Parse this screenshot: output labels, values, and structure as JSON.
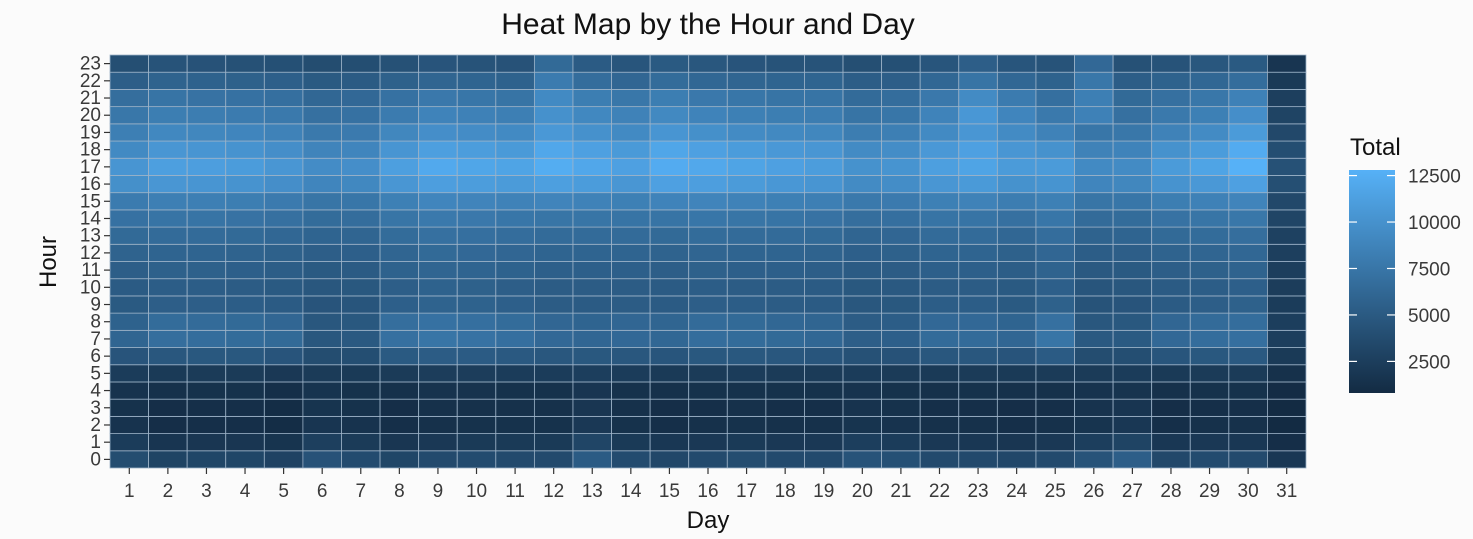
{
  "chart_data": {
    "type": "heatmap",
    "title": "Heat Map by the Hour and Day",
    "xlabel": "Day",
    "ylabel": "Hour",
    "x_categories": [
      "1",
      "2",
      "3",
      "4",
      "5",
      "6",
      "7",
      "8",
      "9",
      "10",
      "11",
      "12",
      "13",
      "14",
      "15",
      "16",
      "17",
      "18",
      "19",
      "20",
      "21",
      "22",
      "23",
      "24",
      "25",
      "26",
      "27",
      "28",
      "29",
      "30",
      "31"
    ],
    "y_categories": [
      "0",
      "1",
      "2",
      "3",
      "4",
      "5",
      "6",
      "7",
      "8",
      "9",
      "10",
      "11",
      "12",
      "13",
      "14",
      "15",
      "16",
      "17",
      "18",
      "19",
      "20",
      "21",
      "22",
      "23"
    ],
    "values": [
      [
        3800,
        3000,
        3200,
        3200,
        2900,
        4300,
        3700,
        3200,
        3600,
        3700,
        3600,
        3600,
        5100,
        3700,
        3300,
        3600,
        3800,
        3600,
        3600,
        4400,
        4100,
        3600,
        3500,
        3300,
        3600,
        4400,
        5400,
        3400,
        3700,
        3600,
        1900
      ],
      [
        2300,
        1700,
        1800,
        1800,
        1600,
        2600,
        2200,
        1800,
        2000,
        2100,
        2100,
        2100,
        3100,
        2100,
        1900,
        2000,
        2100,
        2000,
        2000,
        2500,
        2300,
        2000,
        1900,
        1800,
        2000,
        2500,
        3000,
        1900,
        2000,
        1900,
        1100
      ],
      [
        1500,
        1100,
        1200,
        1200,
        1000,
        1700,
        1500,
        1200,
        1300,
        1400,
        1400,
        1400,
        2000,
        1400,
        1200,
        1300,
        1400,
        1300,
        1300,
        1600,
        1500,
        1300,
        1300,
        1200,
        1300,
        1600,
        1900,
        1200,
        1300,
        1300,
        800
      ],
      [
        1400,
        1100,
        1200,
        1200,
        1000,
        1600,
        1400,
        1100,
        1300,
        1300,
        1300,
        1300,
        1800,
        1300,
        1100,
        1200,
        1300,
        1200,
        1200,
        1500,
        1400,
        1200,
        1200,
        1100,
        1200,
        1500,
        1700,
        1100,
        1200,
        1200,
        800
      ],
      [
        1500,
        1300,
        1400,
        1400,
        1200,
        1600,
        1400,
        1300,
        1500,
        1500,
        1400,
        1400,
        1700,
        1400,
        1300,
        1400,
        1400,
        1400,
        1400,
        1500,
        1400,
        1300,
        1400,
        1300,
        1300,
        1500,
        1600,
        1300,
        1400,
        1400,
        900
      ],
      [
        2300,
        2100,
        2200,
        2200,
        2000,
        2200,
        2100,
        2200,
        2400,
        2400,
        2300,
        2300,
        2500,
        2300,
        2100,
        2200,
        2300,
        2200,
        2200,
        2300,
        2200,
        2100,
        2200,
        2100,
        2200,
        2200,
        2300,
        2100,
        2200,
        2200,
        1300
      ],
      [
        4500,
        4700,
        4800,
        4800,
        4500,
        3800,
        3900,
        5000,
        5200,
        5100,
        4900,
        4700,
        4800,
        4700,
        4600,
        4800,
        4800,
        4700,
        4600,
        4200,
        4300,
        4700,
        4700,
        4500,
        5100,
        3800,
        3900,
        4600,
        4800,
        4900,
        2100
      ],
      [
        6000,
        6800,
        6700,
        6600,
        6400,
        4700,
        4900,
        7000,
        7400,
        7200,
        6900,
        6300,
        6100,
        6300,
        6200,
        6700,
        6600,
        6400,
        6200,
        5400,
        5500,
        6500,
        6500,
        6100,
        7400,
        4900,
        5000,
        6300,
        6700,
        6900,
        2500
      ],
      [
        5700,
        6600,
        6500,
        6400,
        6100,
        4700,
        4800,
        6800,
        7100,
        6900,
        6600,
        6100,
        5900,
        6100,
        6000,
        6500,
        6400,
        6200,
        6000,
        5200,
        5300,
        6300,
        6300,
        5900,
        7000,
        4700,
        4800,
        6100,
        6500,
        6700,
        2500
      ],
      [
        5000,
        5400,
        5400,
        5300,
        5100,
        4500,
        4600,
        5500,
        5800,
        5700,
        5500,
        5200,
        5100,
        5200,
        5100,
        5400,
        5300,
        5200,
        5100,
        4700,
        4800,
        5300,
        5300,
        5000,
        5600,
        4400,
        4500,
        5100,
        5400,
        5600,
        2300
      ],
      [
        5100,
        5300,
        5300,
        5200,
        5000,
        4700,
        4800,
        5400,
        5700,
        5600,
        5400,
        5200,
        5200,
        5200,
        5100,
        5300,
        5200,
        5200,
        5100,
        4800,
        4900,
        5200,
        5200,
        5000,
        5500,
        4600,
        4700,
        5100,
        5300,
        5500,
        2400
      ],
      [
        5400,
        5600,
        5600,
        5500,
        5300,
        5000,
        5100,
        5700,
        6000,
        5900,
        5700,
        5500,
        5500,
        5500,
        5400,
        5600,
        5500,
        5500,
        5400,
        5100,
        5200,
        5500,
        5500,
        5300,
        5800,
        4900,
        5000,
        5400,
        5600,
        5800,
        2500
      ],
      [
        5800,
        5900,
        5900,
        5800,
        5600,
        5400,
        5500,
        6000,
        6400,
        6300,
        6100,
        5900,
        5900,
        5900,
        5800,
        6000,
        5900,
        5900,
        5800,
        5500,
        5600,
        5900,
        5900,
        5600,
        6100,
        5300,
        5400,
        5800,
        6000,
        6200,
        2600
      ],
      [
        6400,
        6500,
        6500,
        6400,
        6200,
        5900,
        6000,
        6600,
        7000,
        6900,
        6700,
        6500,
        6500,
        6500,
        6400,
        6600,
        6500,
        6500,
        6400,
        6000,
        6100,
        6500,
        6500,
        6200,
        6700,
        5800,
        5900,
        6400,
        6600,
        6800,
        2800
      ],
      [
        7100,
        7300,
        7300,
        7200,
        7000,
        6600,
        6700,
        7400,
        7800,
        7700,
        7500,
        7400,
        7400,
        7300,
        7300,
        7500,
        7400,
        7300,
        7200,
        6800,
        6900,
        7300,
        7300,
        7000,
        7500,
        6500,
        6600,
        7200,
        7400,
        7600,
        3100
      ],
      [
        8000,
        8300,
        8300,
        8200,
        7900,
        7400,
        7500,
        8400,
        8900,
        8800,
        8600,
        8800,
        8600,
        8400,
        8700,
        8800,
        8600,
        8400,
        8300,
        7800,
        7900,
        8400,
        8600,
        8100,
        8400,
        7400,
        7500,
        8200,
        8500,
        8800,
        3400
      ],
      [
        9800,
        10400,
        10300,
        10100,
        9700,
        8900,
        9100,
        10400,
        11100,
        11000,
        10800,
        11200,
        10900,
        10400,
        11300,
        11100,
        10800,
        10500,
        10300,
        9400,
        9600,
        10400,
        10700,
        10000,
        10200,
        8900,
        9000,
        10100,
        10600,
        11300,
        4000
      ],
      [
        10300,
        11200,
        11100,
        10900,
        10400,
        9500,
        9700,
        11200,
        12100,
        11800,
        11600,
        12400,
        11900,
        11300,
        12300,
        12000,
        11600,
        11300,
        11000,
        10000,
        10200,
        11200,
        11600,
        10800,
        10800,
        9300,
        9400,
        10800,
        11600,
        12800,
        4200
      ],
      [
        9300,
        10400,
        10300,
        10100,
        9700,
        8800,
        8900,
        10300,
        11200,
        11000,
        10700,
        11900,
        11300,
        10700,
        11800,
        11300,
        10900,
        10600,
        10400,
        9400,
        9600,
        10600,
        11300,
        10400,
        10000,
        8600,
        8700,
        10000,
        10900,
        12300,
        3900
      ],
      [
        8300,
        9100,
        9000,
        8900,
        8600,
        7800,
        7900,
        9000,
        9700,
        9500,
        9300,
        10600,
        9900,
        9300,
        10300,
        9800,
        9400,
        9200,
        9000,
        8100,
        8300,
        9300,
        10400,
        9400,
        8600,
        7500,
        7600,
        8600,
        9400,
        10800,
        3400
      ],
      [
        7600,
        8200,
        8100,
        8000,
        7800,
        7000,
        7100,
        8000,
        8700,
        8500,
        8300,
        9900,
        9100,
        8600,
        9200,
        8700,
        8400,
        8200,
        8100,
        7300,
        7500,
        8700,
        10500,
        8900,
        7800,
        8500,
        7000,
        7800,
        8400,
        9700,
        3000
      ],
      [
        6800,
        7300,
        7200,
        7100,
        6900,
        6200,
        6300,
        7100,
        7700,
        7500,
        7300,
        9300,
        8200,
        7600,
        8200,
        7700,
        7500,
        7300,
        7300,
        6500,
        6700,
        7700,
        9400,
        8000,
        6900,
        8300,
        6400,
        7000,
        7600,
        8500,
        2600
      ],
      [
        5400,
        5800,
        5700,
        5600,
        5500,
        5000,
        5100,
        5600,
        6000,
        5900,
        5700,
        8000,
        6700,
        6100,
        6600,
        6200,
        6000,
        5900,
        5900,
        5300,
        5400,
        6200,
        7300,
        6200,
        5700,
        7600,
        5300,
        5700,
        6200,
        6700,
        2100
      ],
      [
        4000,
        4400,
        4300,
        4200,
        4100,
        3800,
        3900,
        4200,
        4500,
        4400,
        4300,
        6400,
        5100,
        4600,
        5000,
        4700,
        4500,
        4400,
        4400,
        4000,
        4100,
        4600,
        5400,
        4600,
        4400,
        6300,
        4200,
        4400,
        4700,
        5000,
        1700
      ]
    ],
    "colorbar": {
      "title": "Total",
      "min": 800,
      "max": 12800,
      "ticks": [
        2500,
        5000,
        7500,
        10000,
        12500
      ],
      "tick_labels": [
        "2500",
        "5000",
        "7500",
        "10000",
        "12500"
      ],
      "low_color": "#132b43",
      "high_color": "#56b1f7"
    },
    "grid": true
  }
}
